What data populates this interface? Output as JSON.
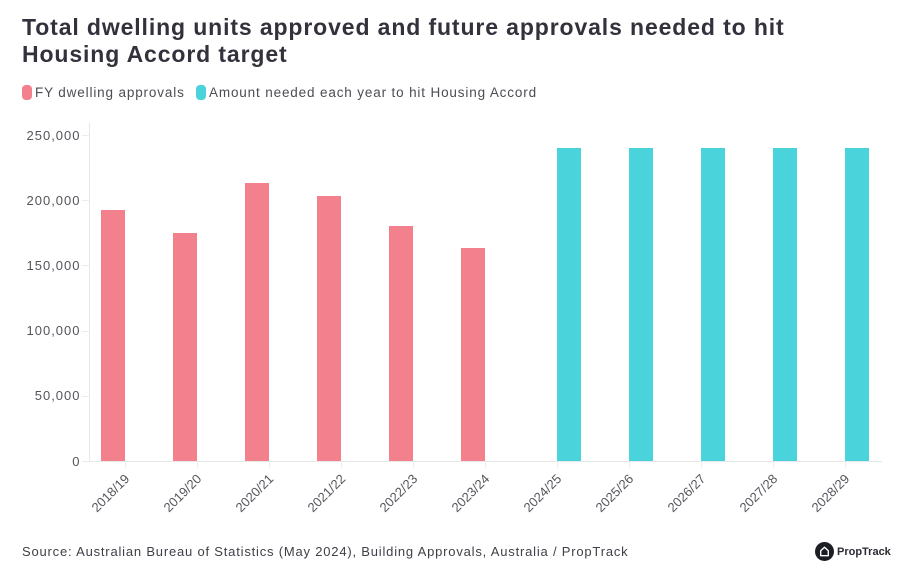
{
  "title": "Total dwelling units approved and future approvals needed to hit Housing Accord target",
  "source_note": "Source: Australian Bureau of Statistics (May 2024), Building Approvals, Australia / PropTrack",
  "logo": {
    "text": "PropTrack"
  },
  "colors": {
    "series_approvals": "#f2818d",
    "series_needed": "#4bd3dc",
    "title_text": "#33323c",
    "axis_text": "#54545c",
    "axis_line": "#e7e7e7",
    "background": "#ffffff",
    "logo_badge": "#1d1d26"
  },
  "chart_data": {
    "type": "bar",
    "title": "Total dwelling units approved and future approvals needed to hit Housing Accord target",
    "categories": [
      "2018/19",
      "2019/20",
      "2020/21",
      "2021/22",
      "2022/23",
      "2023/24",
      "2024/25",
      "2025/26",
      "2026/27",
      "2027/28",
      "2028/29"
    ],
    "series": [
      {
        "name": "FY dwelling approvals",
        "color": "#f2818d",
        "values": [
          192500,
          175000,
          213500,
          203500,
          180000,
          163000,
          null,
          null,
          null,
          null,
          null
        ]
      },
      {
        "name": "Amount needed each year to hit Housing Accord",
        "color": "#4bd3dc",
        "values": [
          null,
          null,
          null,
          null,
          null,
          null,
          240000,
          240000,
          240000,
          240000,
          240000
        ]
      }
    ],
    "xlabel": "",
    "ylabel": "",
    "ylim": [
      0,
      250000
    ],
    "yticks": [
      0,
      50000,
      100000,
      150000,
      200000,
      250000
    ],
    "ytick_labels": [
      "0",
      "50,000",
      "100,000",
      "150,000",
      "200,000",
      "250,000"
    ],
    "grid": false,
    "legend_position": "top-left"
  }
}
